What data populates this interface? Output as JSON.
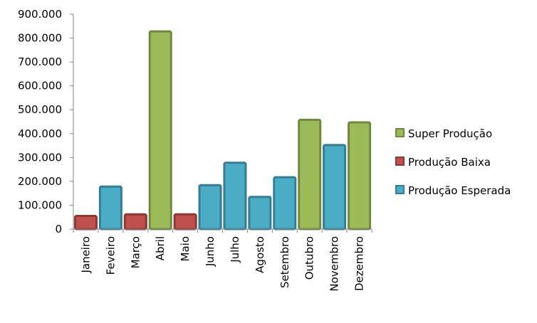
{
  "chart_data": {
    "type": "bar",
    "title": "",
    "xlabel": "",
    "ylabel": "",
    "ylim": [
      0,
      900000
    ],
    "y_ticks": [
      {
        "value": 0,
        "label": "0"
      },
      {
        "value": 100000,
        "label": "100.000"
      },
      {
        "value": 200000,
        "label": "200.000"
      },
      {
        "value": 300000,
        "label": "300.000"
      },
      {
        "value": 400000,
        "label": "400.000"
      },
      {
        "value": 500000,
        "label": "500.000"
      },
      {
        "value": 600000,
        "label": "600.000"
      },
      {
        "value": 700000,
        "label": "700.000"
      },
      {
        "value": 800000,
        "label": "800.000"
      },
      {
        "value": 900000,
        "label": "900.000"
      }
    ],
    "grid": false,
    "legend_position": "right",
    "categories": [
      "Janeiro",
      "Feveiro",
      "Março",
      "Abril",
      "Maio",
      "Junho",
      "Julho",
      "Agosto",
      "Setembro",
      "Outubro",
      "Novembro",
      "Dezembro"
    ],
    "series": [
      {
        "name": "Super Produção",
        "color": "#9bbb59",
        "stroke": "#71893f"
      },
      {
        "name": "Produção Baixa",
        "color": "#c0504d",
        "stroke": "#8c3836"
      },
      {
        "name": "Produção Esperada",
        "color": "#4bacc6",
        "stroke": "#357d91"
      }
    ],
    "bars": [
      {
        "category": "Janeiro",
        "series": 1,
        "value": 55000
      },
      {
        "category": "Feveiro",
        "series": 2,
        "value": 178000
      },
      {
        "category": "Março",
        "series": 1,
        "value": 62000
      },
      {
        "category": "Abril",
        "series": 0,
        "value": 828000
      },
      {
        "category": "Maio",
        "series": 1,
        "value": 62000
      },
      {
        "category": "Junho",
        "series": 2,
        "value": 184000
      },
      {
        "category": "Julho",
        "series": 2,
        "value": 278000
      },
      {
        "category": "Agosto",
        "series": 2,
        "value": 135000
      },
      {
        "category": "Setembro",
        "series": 2,
        "value": 217000
      },
      {
        "category": "Outubro",
        "series": 0,
        "value": 458000
      },
      {
        "category": "Novembro",
        "series": 2,
        "value": 352000
      },
      {
        "category": "Dezembro",
        "series": 0,
        "value": 447000
      }
    ]
  }
}
